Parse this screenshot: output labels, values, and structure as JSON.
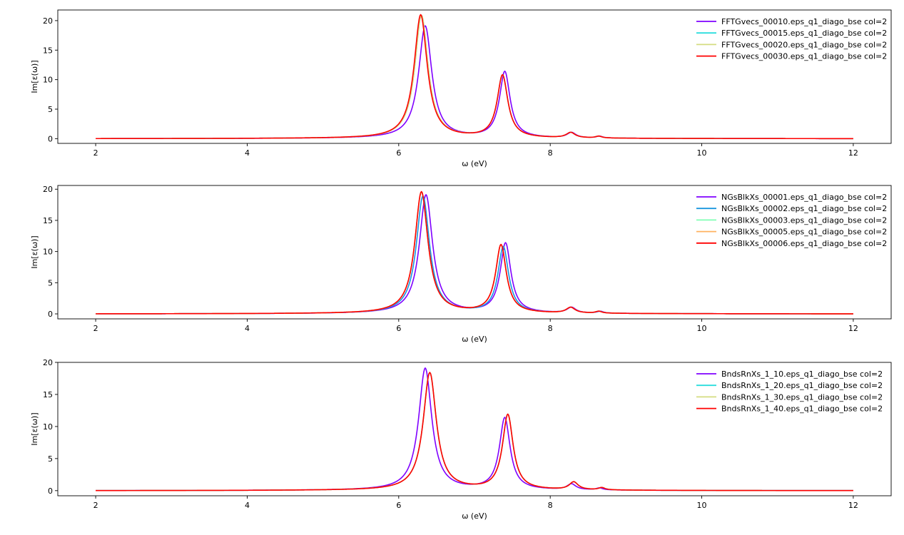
{
  "chart_data": [
    {
      "type": "line",
      "title": "",
      "xlabel": "ω (eV)",
      "ylabel": "Im[ε(ω)]",
      "xlim": [
        1.5,
        12.5
      ],
      "ylim": [
        -0.8,
        21.8
      ],
      "xticks": [
        2,
        4,
        6,
        8,
        10,
        12
      ],
      "yticks": [
        0,
        5,
        10,
        15,
        20
      ],
      "legend_position": "top-right",
      "grid": false,
      "series": [
        {
          "name": "FFTGvecs_00010.eps_q1_diago_bse col=2",
          "color": "#7f00ff",
          "peaks": [
            [
              6.35,
              19.0,
              0.105
            ],
            [
              7.4,
              11.2,
              0.085
            ],
            [
              8.28,
              0.9,
              0.07
            ],
            [
              8.65,
              0.3,
              0.05
            ]
          ]
        },
        {
          "name": "FFTGvecs_00015.eps_q1_diago_bse col=2",
          "color": "#2adddd",
          "peaks": [
            [
              6.3,
              20.8,
              0.105
            ],
            [
              7.37,
              10.6,
              0.085
            ],
            [
              8.27,
              0.9,
              0.07
            ],
            [
              8.64,
              0.3,
              0.05
            ]
          ]
        },
        {
          "name": "FFTGvecs_00020.eps_q1_diago_bse col=2",
          "color": "#d4dd80",
          "peaks": [
            [
              6.3,
              20.8,
              0.105
            ],
            [
              7.37,
              10.6,
              0.085
            ],
            [
              8.27,
              0.9,
              0.07
            ],
            [
              8.64,
              0.3,
              0.05
            ]
          ]
        },
        {
          "name": "FFTGvecs_00030.eps_q1_diago_bse col=2",
          "color": "#ff0000",
          "peaks": [
            [
              6.29,
              20.9,
              0.105
            ],
            [
              7.37,
              10.6,
              0.085
            ],
            [
              8.27,
              0.9,
              0.07
            ],
            [
              8.64,
              0.3,
              0.05
            ]
          ]
        }
      ]
    },
    {
      "type": "line",
      "title": "",
      "xlabel": "ω (eV)",
      "ylabel": "Im[ε(ω)]",
      "xlim": [
        1.5,
        12.5
      ],
      "ylim": [
        -0.8,
        20.6
      ],
      "xticks": [
        2,
        4,
        6,
        8,
        10,
        12
      ],
      "yticks": [
        0,
        5,
        10,
        15,
        20
      ],
      "legend_position": "top-right",
      "grid": false,
      "series": [
        {
          "name": "NGsBlkXs_00001.eps_q1_diago_bse col=2",
          "color": "#7f00ff",
          "peaks": [
            [
              6.36,
              19.0,
              0.105
            ],
            [
              7.41,
              11.2,
              0.085
            ],
            [
              8.28,
              0.9,
              0.07
            ],
            [
              8.66,
              0.3,
              0.05
            ]
          ]
        },
        {
          "name": "NGsBlkXs_00002.eps_q1_diago_bse col=2",
          "color": "#1996de",
          "peaks": [
            [
              6.32,
              18.8,
              0.105
            ],
            [
              7.38,
              10.6,
              0.085
            ],
            [
              8.27,
              0.9,
              0.07
            ],
            [
              8.65,
              0.3,
              0.05
            ]
          ]
        },
        {
          "name": "NGsBlkXs_00003.eps_q1_diago_bse col=2",
          "color": "#80ffb4",
          "peaks": [
            [
              6.3,
              19.4,
              0.105
            ],
            [
              7.35,
              10.9,
              0.085
            ],
            [
              8.27,
              0.9,
              0.07
            ],
            [
              8.64,
              0.3,
              0.05
            ]
          ]
        },
        {
          "name": "NGsBlkXs_00005.eps_q1_diago_bse col=2",
          "color": "#ffb360",
          "peaks": [
            [
              6.3,
              19.5,
              0.105
            ],
            [
              7.35,
              10.9,
              0.085
            ],
            [
              8.27,
              0.9,
              0.07
            ],
            [
              8.64,
              0.3,
              0.05
            ]
          ]
        },
        {
          "name": "NGsBlkXs_00006.eps_q1_diago_bse col=2",
          "color": "#ff0000",
          "peaks": [
            [
              6.3,
              19.5,
              0.105
            ],
            [
              7.35,
              10.9,
              0.085
            ],
            [
              8.27,
              0.9,
              0.07
            ],
            [
              8.64,
              0.3,
              0.05
            ]
          ]
        }
      ]
    },
    {
      "type": "line",
      "title": "",
      "xlabel": "ω (eV)",
      "ylabel": "Im[ε(ω)]",
      "xlim": [
        1.5,
        12.5
      ],
      "ylim": [
        -0.8,
        20.0
      ],
      "xticks": [
        2,
        4,
        6,
        8,
        10,
        12
      ],
      "yticks": [
        0,
        5,
        10,
        15,
        20
      ],
      "legend_position": "top-right",
      "grid": false,
      "series": [
        {
          "name": "BndsRnXs_1_10.eps_q1_diago_bse col=2",
          "color": "#7f00ff",
          "peaks": [
            [
              6.35,
              19.0,
              0.105
            ],
            [
              7.4,
              11.2,
              0.085
            ],
            [
              8.28,
              0.9,
              0.07
            ],
            [
              8.65,
              0.3,
              0.05
            ]
          ]
        },
        {
          "name": "BndsRnXs_1_20.eps_q1_diago_bse col=2",
          "color": "#2adddd",
          "peaks": [
            [
              6.41,
              18.3,
              0.105
            ],
            [
              7.44,
              11.7,
              0.085
            ],
            [
              8.31,
              1.2,
              0.07
            ],
            [
              8.68,
              0.35,
              0.05
            ]
          ]
        },
        {
          "name": "BndsRnXs_1_30.eps_q1_diago_bse col=2",
          "color": "#d4dd80",
          "peaks": [
            [
              6.41,
              18.3,
              0.105
            ],
            [
              7.44,
              11.7,
              0.085
            ],
            [
              8.31,
              1.2,
              0.07
            ],
            [
              8.68,
              0.35,
              0.05
            ]
          ]
        },
        {
          "name": "BndsRnXs_1_40.eps_q1_diago_bse col=2",
          "color": "#ff0000",
          "peaks": [
            [
              6.41,
              18.3,
              0.105
            ],
            [
              7.44,
              11.7,
              0.085
            ],
            [
              8.31,
              1.2,
              0.07
            ],
            [
              8.68,
              0.35,
              0.05
            ]
          ]
        }
      ]
    }
  ]
}
